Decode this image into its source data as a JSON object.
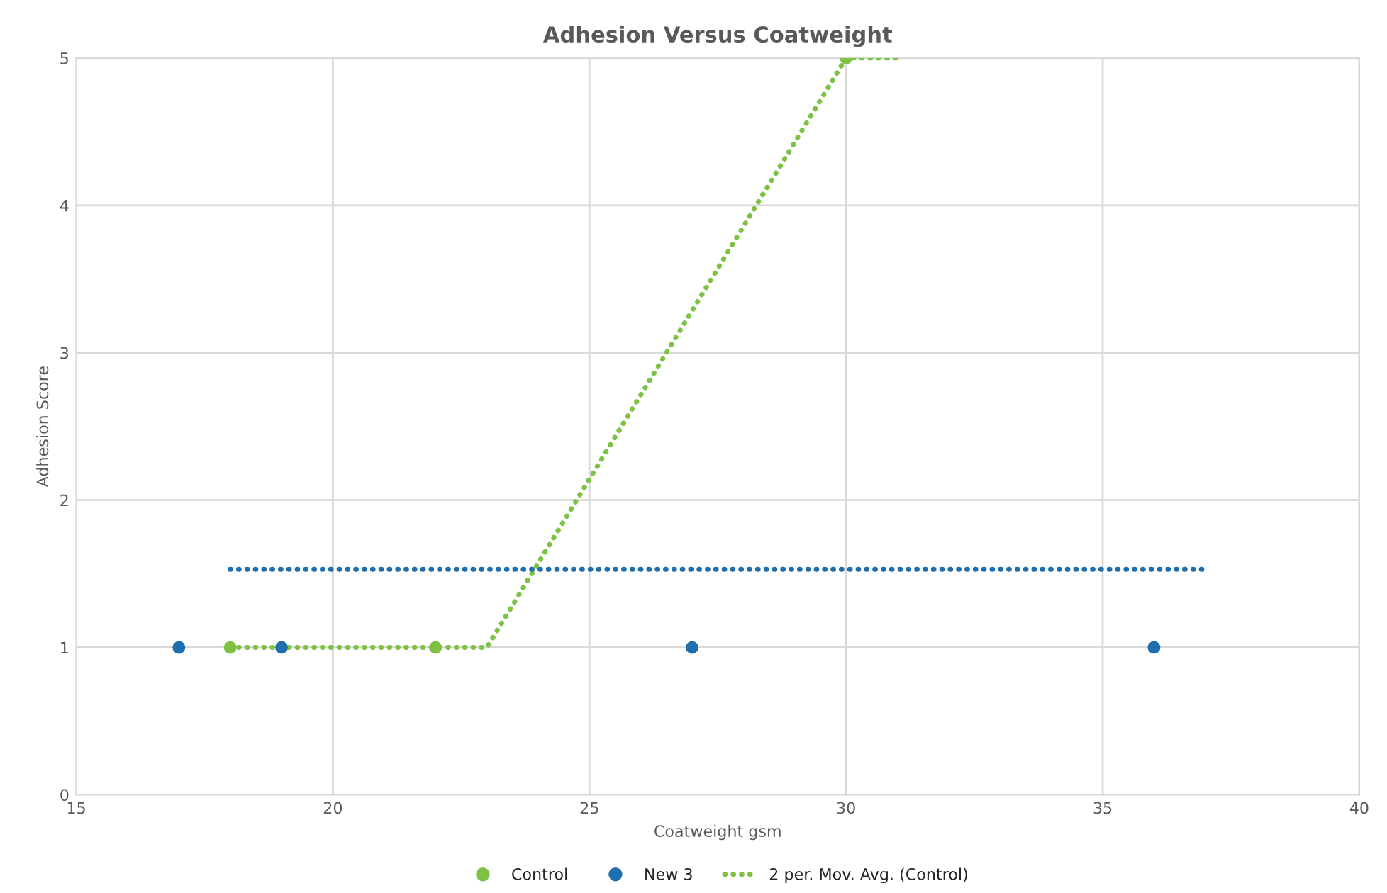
{
  "chart_data": {
    "type": "scatter",
    "title": "Adhesion Versus Coatweight",
    "xlabel": "Coatweight gsm",
    "ylabel": "Adhesion Score",
    "xlim": [
      15,
      40
    ],
    "xticks": [
      15,
      20,
      25,
      30,
      35,
      40
    ],
    "ylim": [
      0,
      5
    ],
    "yticks": [
      0,
      1,
      2,
      3,
      4,
      5
    ],
    "grid": true,
    "legend": "bottom",
    "marker": "circle",
    "series": [
      {
        "name": "Control",
        "color": "#7dc242",
        "x": [
          18,
          22,
          30
        ],
        "values": [
          1,
          1,
          5
        ]
      },
      {
        "name": "New 3",
        "color": "#1f6fae",
        "x": [
          17,
          19,
          27,
          36
        ],
        "values": [
          1,
          1,
          1,
          1
        ]
      },
      {
        "name": "2 per. Mov. Avg. (Control)",
        "type": "line",
        "line_style": "dotted",
        "marker": "none",
        "color": "#7dc242",
        "x": [
          18,
          23,
          30,
          31
        ],
        "values": [
          1,
          1,
          5,
          5
        ]
      },
      {
        "type": "line",
        "line_style": "dotted",
        "marker": "none",
        "color": "#1f6fae",
        "x": [
          18,
          37
        ],
        "values": [
          1.53,
          1.53
        ]
      }
    ]
  }
}
